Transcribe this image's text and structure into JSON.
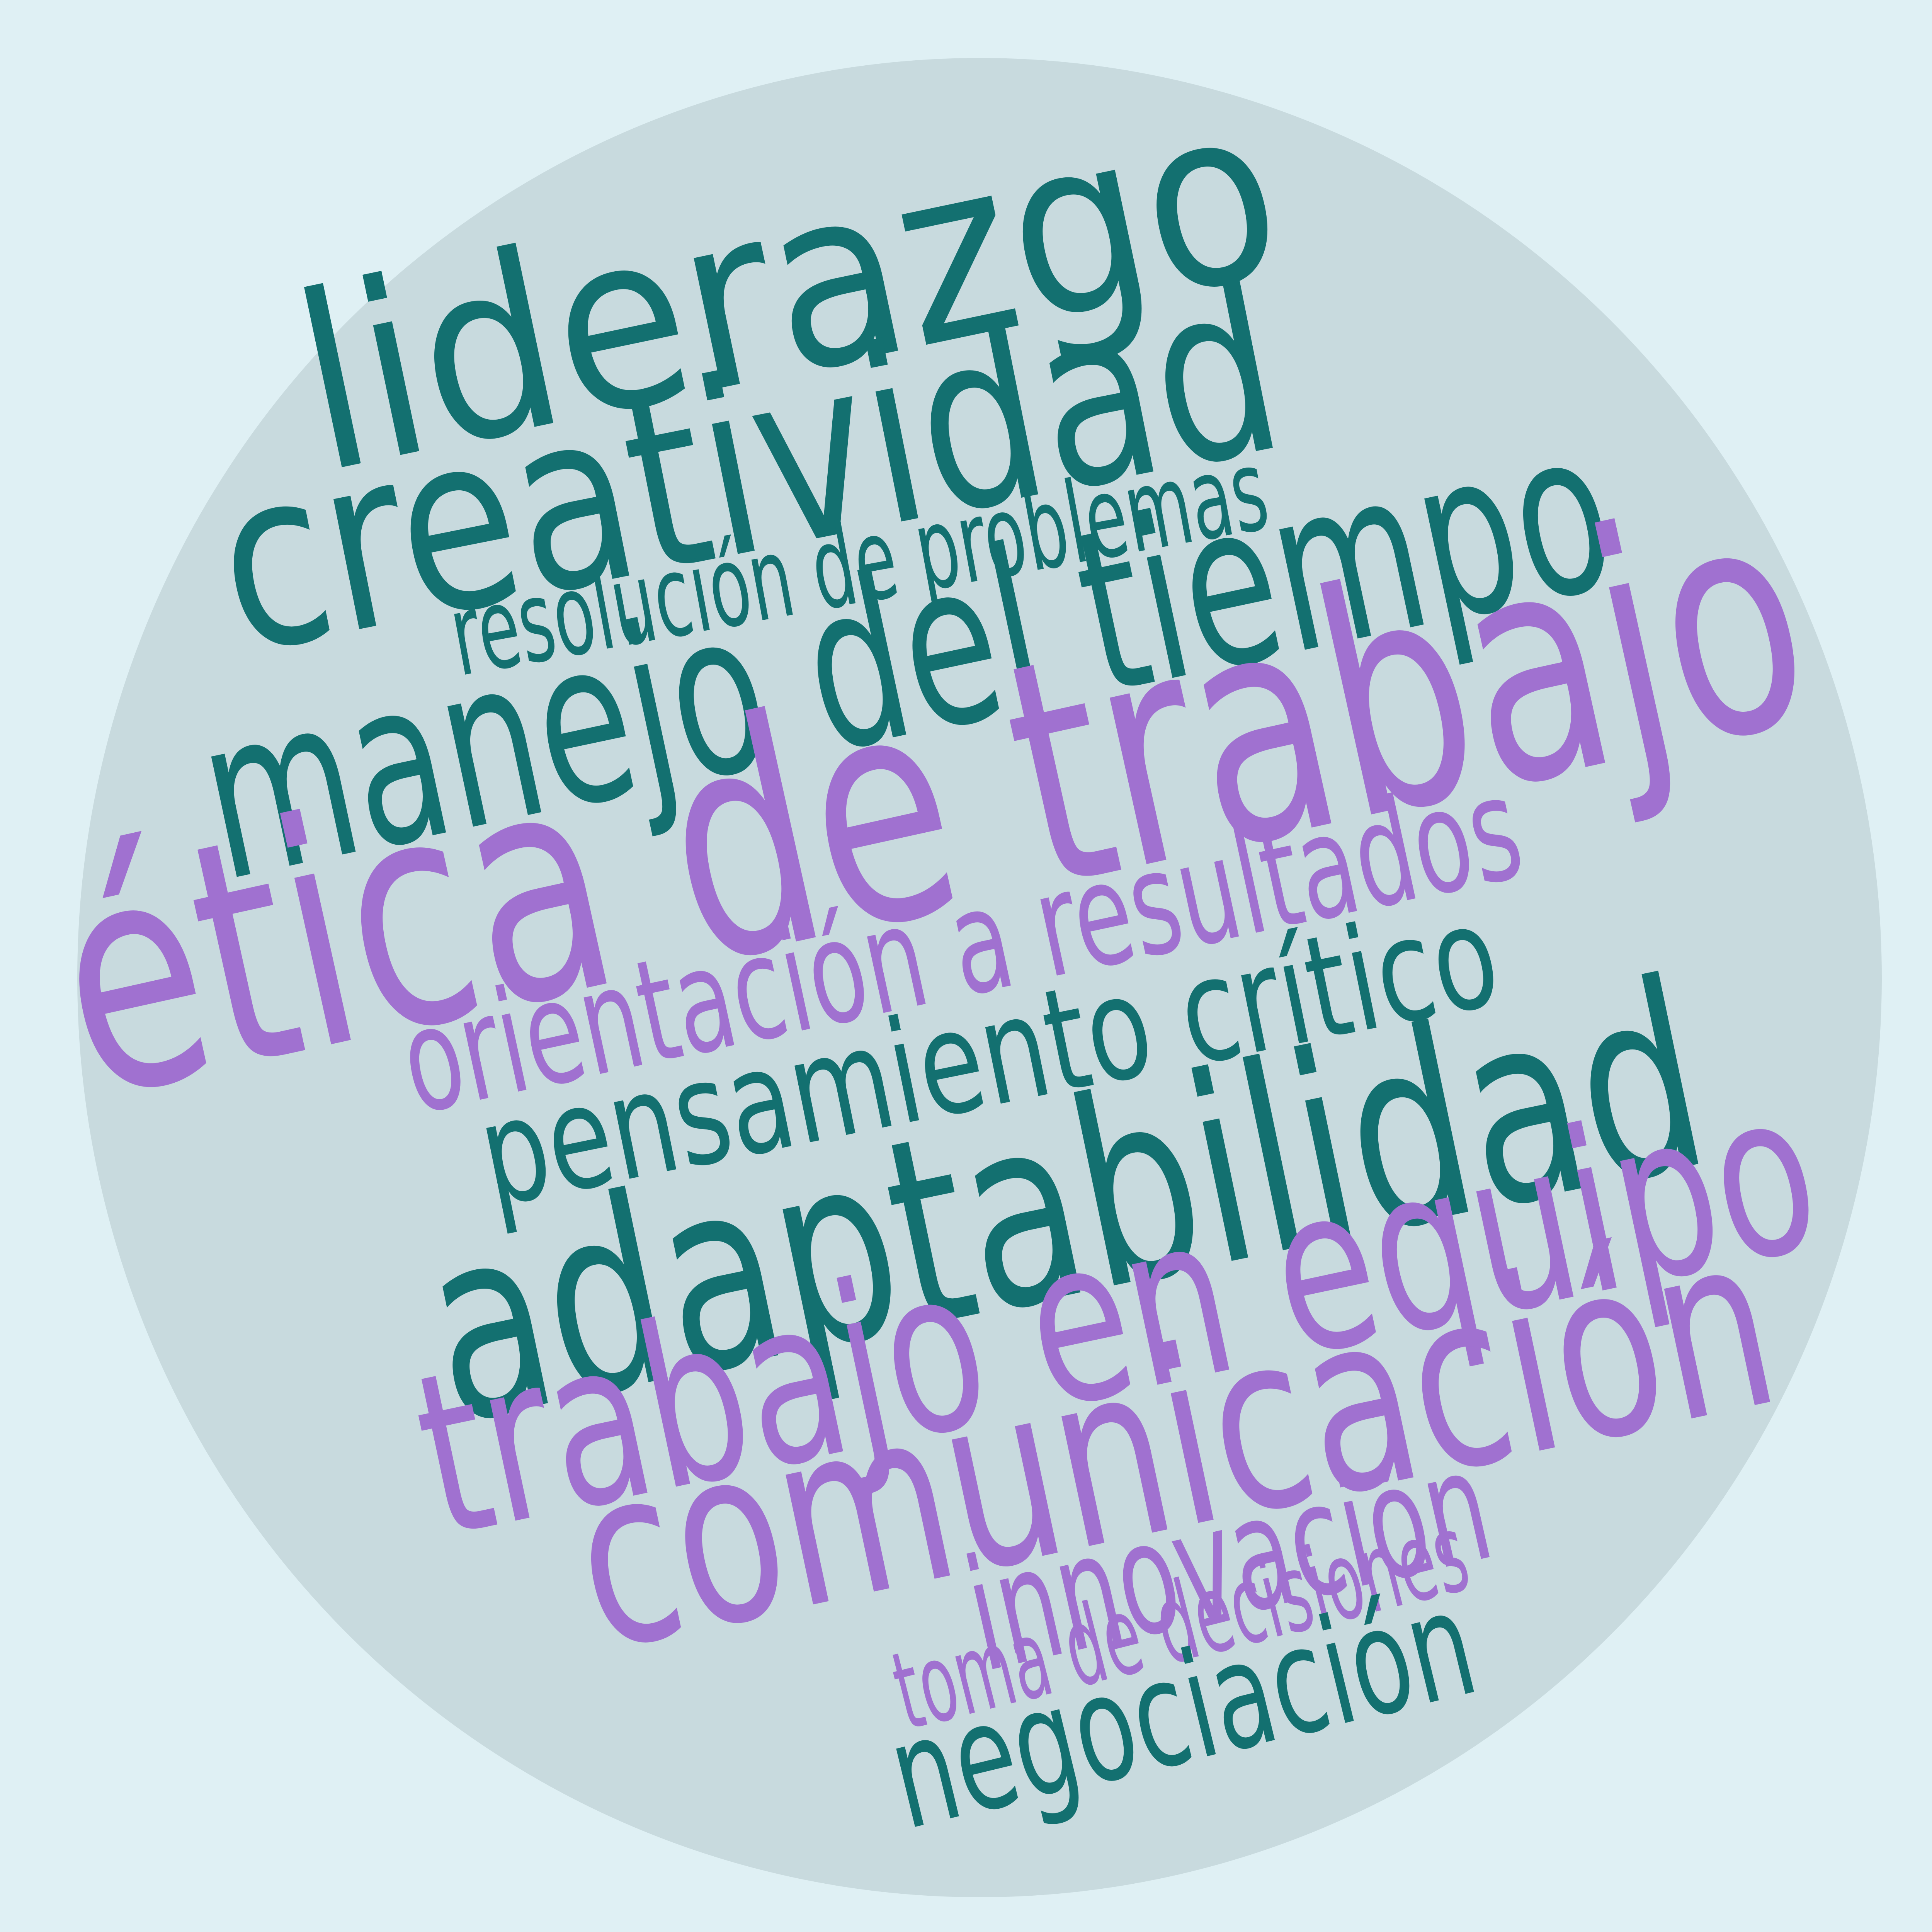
{
  "palette": {
    "background": "#dff0f4",
    "disc": "#c8dade",
    "teal": "#137070",
    "purple": "#a071d0"
  },
  "words": {
    "liderazgo": "liderazgo",
    "creatividad": "creatividad",
    "resolucion_de_problemas": "resolución de problemas",
    "manejo_del_tiempo": "manejo del tiempo",
    "etica_de_trabajo": "ética de trabajo",
    "orientacion_a_resultados": "orientación a resultados",
    "pensamiento_critico": "pensamiento crítico",
    "adaptabilidad": "adaptabilidad",
    "trabajo_en_equipo": "trabajo en equipo",
    "comunicacion": "comunicación",
    "innovacion": "innovación",
    "toma_de_decisiones": "toma de decisiones",
    "negociacion": "negociación"
  }
}
